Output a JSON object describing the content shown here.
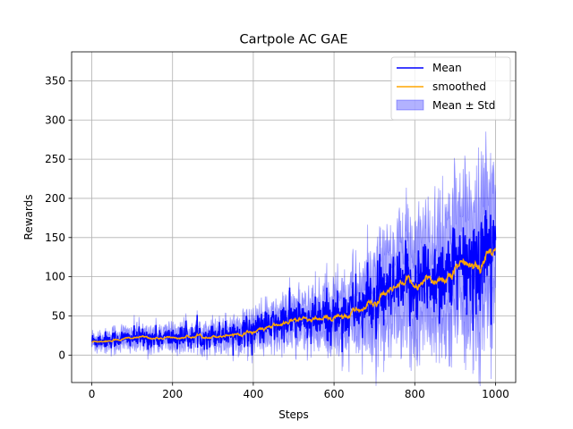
{
  "chart_data": {
    "type": "line",
    "title": "Cartpole AC GAE",
    "xlabel": "Steps",
    "ylabel": "Rewards",
    "xlim": [
      -50,
      1050
    ],
    "ylim": [
      -35,
      387
    ],
    "xticks": [
      0,
      200,
      400,
      600,
      800,
      1000
    ],
    "yticks": [
      0,
      50,
      100,
      150,
      200,
      250,
      300,
      350
    ],
    "grid": true,
    "legend_position": "top-right",
    "colors": {
      "mean": "#0000ff",
      "smoothed": "#ffa500",
      "band": "#0000ff"
    },
    "series": [
      {
        "name": "Mean",
        "kind": "line",
        "color": "#0000ff"
      },
      {
        "name": "smoothed",
        "kind": "line",
        "color": "#ffa500"
      },
      {
        "name": "Mean ± Std",
        "kind": "band",
        "color": "#0000ff"
      }
    ],
    "trend": {
      "x": [
        0,
        100,
        200,
        300,
        400,
        450,
        500,
        550,
        600,
        650,
        700,
        750,
        800,
        850,
        900,
        950,
        1000
      ],
      "smoothed": [
        18,
        22,
        22,
        25,
        32,
        37,
        45,
        42,
        50,
        58,
        68,
        82,
        92,
        100,
        108,
        115,
        150
      ],
      "mean_spread": [
        7,
        8,
        9,
        10,
        13,
        15,
        18,
        20,
        22,
        25,
        28,
        30,
        35,
        38,
        42,
        45,
        50
      ],
      "std": [
        6,
        10,
        10,
        12,
        15,
        18,
        22,
        25,
        30,
        35,
        45,
        55,
        60,
        65,
        75,
        80,
        85
      ]
    }
  }
}
